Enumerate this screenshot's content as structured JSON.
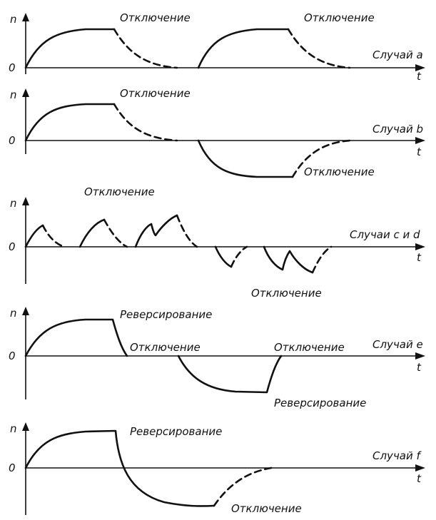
{
  "labels": {
    "y_axis": "n",
    "x_axis": "t",
    "origin": "0",
    "switch_off": "Отключение",
    "reversing": "Реверсирование"
  },
  "panels": [
    {
      "case_label": "Случай a"
    },
    {
      "case_label": "Случай b"
    },
    {
      "case_label": "Случаи c и d"
    },
    {
      "case_label": "Случай e"
    },
    {
      "case_label": "Случай f"
    }
  ]
}
